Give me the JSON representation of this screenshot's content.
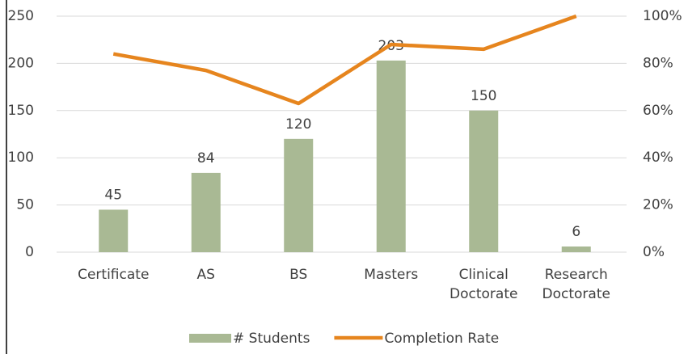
{
  "chart_data": {
    "type": "bar-line",
    "categories": [
      "Certificate",
      "AS",
      "BS",
      "Masters",
      "Clinical Doctorate",
      "Research Doctorate"
    ],
    "series": [
      {
        "name": "# Students",
        "color": "#a9b994",
        "type": "bar",
        "values": [
          45,
          84,
          120,
          203,
          150,
          6
        ],
        "data_labels": true
      },
      {
        "name": "Completion Rate",
        "color": "#e6851e",
        "type": "line",
        "axis": "y2",
        "values": [
          84,
          77,
          63,
          88,
          86,
          100
        ]
      }
    ],
    "ylim": [
      0,
      250
    ],
    "yticks": [
      0,
      50,
      100,
      150,
      200,
      250
    ],
    "y2lim": [
      0,
      100
    ],
    "y2ticks": [
      {
        "value": 0,
        "label": "0%"
      },
      {
        "value": 20,
        "label": "20%"
      },
      {
        "value": 40,
        "label": "40%"
      },
      {
        "value": 60,
        "label": "60%"
      },
      {
        "value": 80,
        "label": "80%"
      },
      {
        "value": 100,
        "label": "100%"
      }
    ],
    "grid": true,
    "legend": "bottom"
  }
}
